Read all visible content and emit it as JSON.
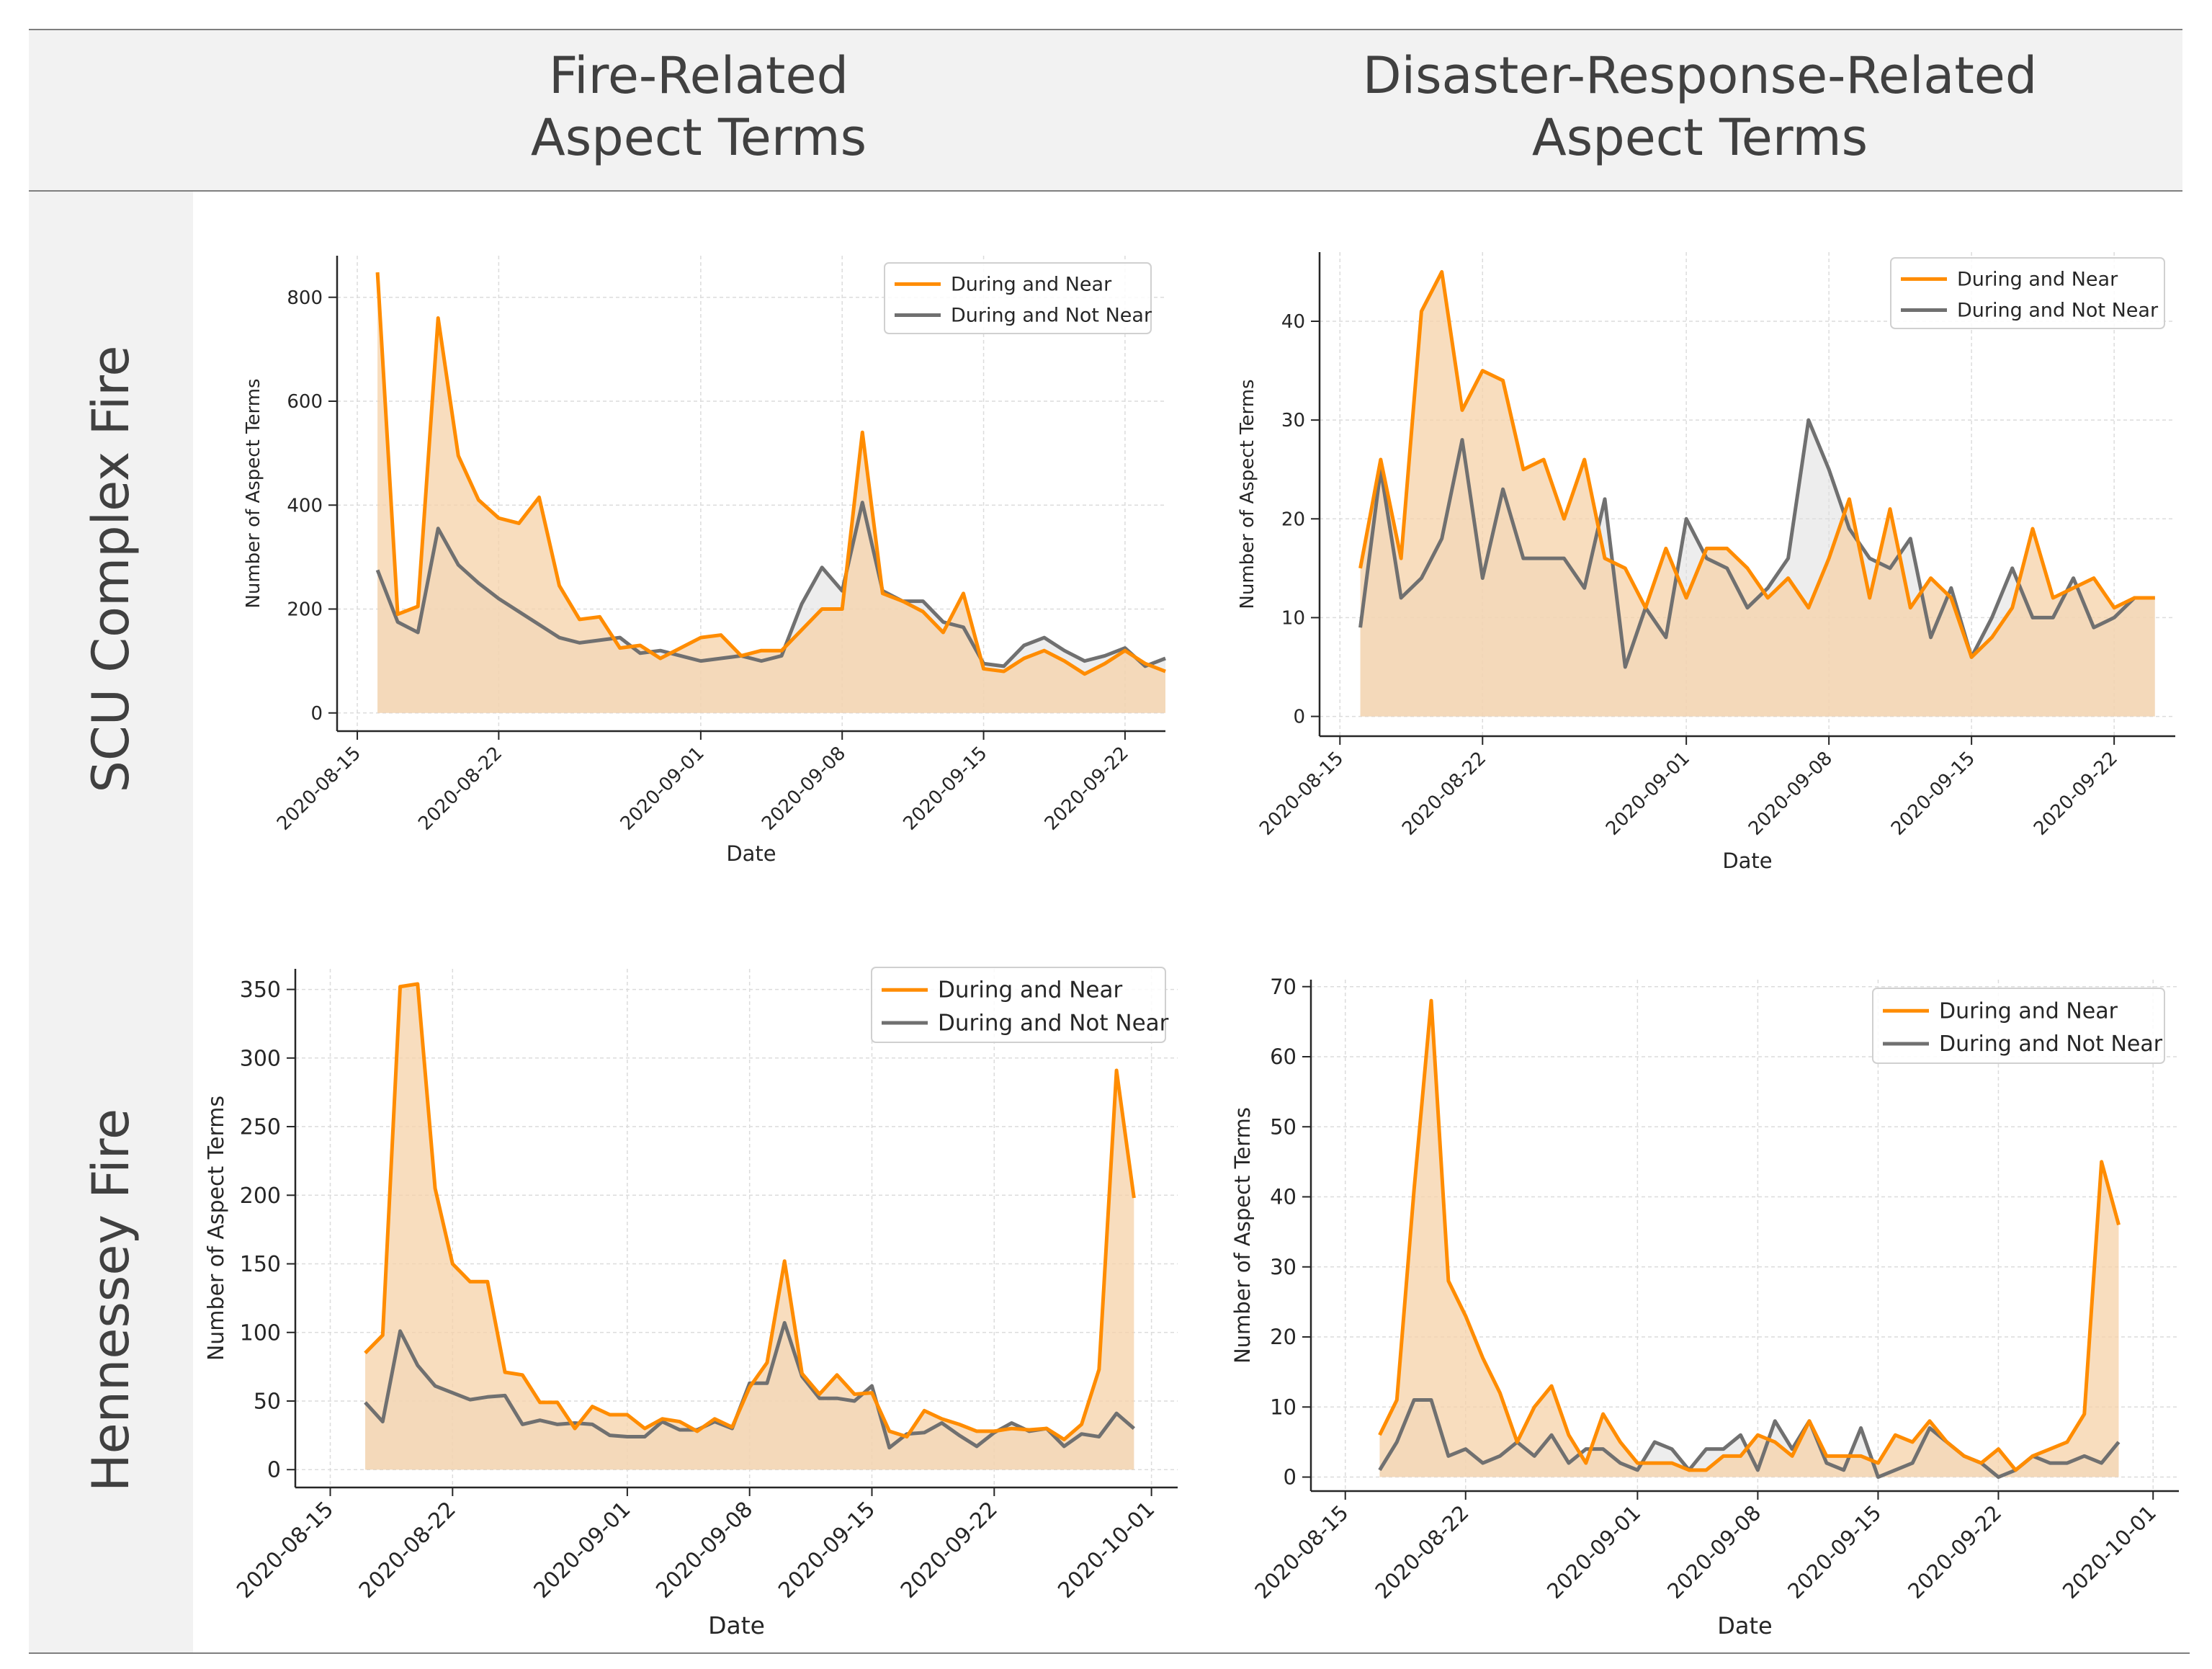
{
  "headers": {
    "col1_line1": "Fire-Related",
    "col1_line2": "Aspect Terms",
    "col2_line1": "Disaster-Response-Related",
    "col2_line2": "Aspect Terms",
    "row1": "SCU Complex Fire",
    "row2": "Hennessey Fire"
  },
  "colors": {
    "near": "#ff8c00",
    "not_near": "#707070",
    "near_fill": "#f5d1a8",
    "not_near_fill": "#dedede",
    "band": "#f2f2f2"
  },
  "chart_data": [
    {
      "type": "line",
      "id": "scu-fire",
      "xlabel": "Date",
      "ylabel": "Number of Aspect Terms",
      "x_start": "2020-08-16",
      "x_ticks": [
        "2020-08-15",
        "2020-08-22",
        "2020-09-01",
        "2020-09-08",
        "2020-09-15",
        "2020-09-22"
      ],
      "x_tick_days": [
        -1,
        6,
        16,
        23,
        30,
        37
      ],
      "xlim": [
        -2,
        39
      ],
      "y_ticks": [
        0,
        200,
        400,
        600,
        800
      ],
      "ylim": [
        -35,
        880
      ],
      "legend": "top-right",
      "series": [
        {
          "name": "During and Near",
          "values": [
            848,
            190,
            205,
            760,
            495,
            410,
            375,
            365,
            415,
            245,
            180,
            185,
            125,
            130,
            105,
            125,
            145,
            150,
            110,
            120,
            120,
            160,
            200,
            200,
            540,
            230,
            215,
            195,
            155,
            230,
            85,
            80,
            105,
            120,
            100,
            75,
            95,
            120,
            95,
            80
          ]
        },
        {
          "name": "During and Not Near",
          "values": [
            275,
            175,
            155,
            355,
            285,
            250,
            220,
            195,
            170,
            145,
            135,
            140,
            145,
            115,
            120,
            110,
            100,
            105,
            110,
            100,
            110,
            210,
            280,
            235,
            405,
            235,
            215,
            215,
            175,
            165,
            95,
            90,
            130,
            145,
            120,
            100,
            110,
            125,
            90,
            105
          ]
        }
      ]
    },
    {
      "type": "line",
      "id": "scu-disaster",
      "xlabel": "Date",
      "ylabel": "Number of Aspect Terms",
      "x_start": "2020-08-16",
      "x_ticks": [
        "2020-08-15",
        "2020-08-22",
        "2020-09-01",
        "2020-09-08",
        "2020-09-15",
        "2020-09-22"
      ],
      "x_tick_days": [
        -1,
        6,
        16,
        23,
        30,
        37
      ],
      "xlim": [
        -2,
        40
      ],
      "y_ticks": [
        0,
        10,
        20,
        30,
        40
      ],
      "ylim": [
        -2,
        47
      ],
      "legend": "top-right",
      "series": [
        {
          "name": "During and Near",
          "values": [
            15,
            26,
            16,
            41,
            45,
            31,
            35,
            34,
            25,
            26,
            20,
            26,
            16,
            15,
            11,
            17,
            12,
            17,
            17,
            15,
            12,
            14,
            11,
            16,
            22,
            12,
            21,
            11,
            14,
            12,
            6,
            8,
            11,
            19,
            12,
            13,
            14,
            11,
            12,
            12
          ]
        },
        {
          "name": "During and Not Near",
          "values": [
            9,
            25,
            12,
            14,
            18,
            28,
            14,
            23,
            16,
            16,
            16,
            13,
            22,
            5,
            11,
            8,
            20,
            16,
            15,
            11,
            13,
            16,
            30,
            25,
            19,
            16,
            15,
            18,
            8,
            13,
            6,
            10,
            15,
            10,
            10,
            14,
            9,
            10,
            12,
            12
          ]
        }
      ]
    },
    {
      "type": "line",
      "id": "hen-fire",
      "xlabel": "Date",
      "ylabel": "Number of Aspect Terms",
      "x_start": "2020-08-17",
      "x_ticks": [
        "2020-08-15",
        "2020-08-22",
        "2020-09-01",
        "2020-09-08",
        "2020-09-15",
        "2020-09-22",
        "2020-10-01"
      ],
      "x_tick_days": [
        -2,
        5,
        15,
        22,
        29,
        36,
        45
      ],
      "xlim": [
        -4,
        46.5
      ],
      "y_ticks": [
        0,
        50,
        100,
        150,
        200,
        250,
        300,
        350
      ],
      "ylim": [
        -13,
        365
      ],
      "legend": "top-right",
      "series": [
        {
          "name": "During and Near",
          "values": [
            85,
            98,
            352,
            354,
            205,
            150,
            137,
            137,
            71,
            69,
            49,
            49,
            30,
            46,
            40,
            40,
            30,
            37,
            35,
            28,
            37,
            31,
            60,
            78,
            152,
            70,
            55,
            69,
            55,
            56,
            28,
            24,
            43,
            37,
            33,
            28,
            28,
            30,
            29,
            30,
            22,
            33,
            73,
            291,
            198
          ]
        },
        {
          "name": "During and Not Near",
          "values": [
            49,
            35,
            101,
            76,
            61,
            56,
            51,
            53,
            54,
            33,
            36,
            33,
            34,
            33,
            25,
            24,
            24,
            35,
            29,
            29,
            35,
            30,
            63,
            63,
            107,
            68,
            52,
            52,
            50,
            61,
            16,
            26,
            27,
            34,
            25,
            17,
            27,
            34,
            28,
            30,
            17,
            26,
            24,
            41,
            30
          ]
        }
      ]
    },
    {
      "type": "line",
      "id": "hen-disaster",
      "xlabel": "Date",
      "ylabel": "Number of Aspect Terms",
      "x_start": "2020-08-17",
      "x_ticks": [
        "2020-08-15",
        "2020-08-22",
        "2020-09-01",
        "2020-09-08",
        "2020-09-15",
        "2020-09-22",
        "2020-10-01"
      ],
      "x_tick_days": [
        -2,
        5,
        15,
        22,
        29,
        36,
        45
      ],
      "xlim": [
        -4,
        46.5
      ],
      "y_ticks": [
        0,
        10,
        20,
        30,
        40,
        50,
        60,
        70
      ],
      "ylim": [
        -2,
        71
      ],
      "legend": "top-right",
      "series": [
        {
          "name": "During and Near",
          "values": [
            6,
            11,
            41,
            68,
            28,
            23,
            17,
            12,
            5,
            10,
            13,
            6,
            2,
            9,
            5,
            2,
            2,
            2,
            1,
            1,
            3,
            3,
            6,
            5,
            3,
            8,
            3,
            3,
            3,
            2,
            6,
            5,
            8,
            5,
            3,
            2,
            4,
            1,
            3,
            4,
            5,
            9,
            45,
            36
          ]
        },
        {
          "name": "During and Not Near",
          "values": [
            1,
            5,
            11,
            11,
            3,
            4,
            2,
            3,
            5,
            3,
            6,
            2,
            4,
            4,
            2,
            1,
            5,
            4,
            1,
            4,
            4,
            6,
            1,
            8,
            4,
            8,
            2,
            1,
            7,
            0,
            1,
            2,
            7,
            5,
            3,
            2,
            0,
            1,
            3,
            2,
            2,
            3,
            2,
            5
          ]
        }
      ]
    }
  ]
}
